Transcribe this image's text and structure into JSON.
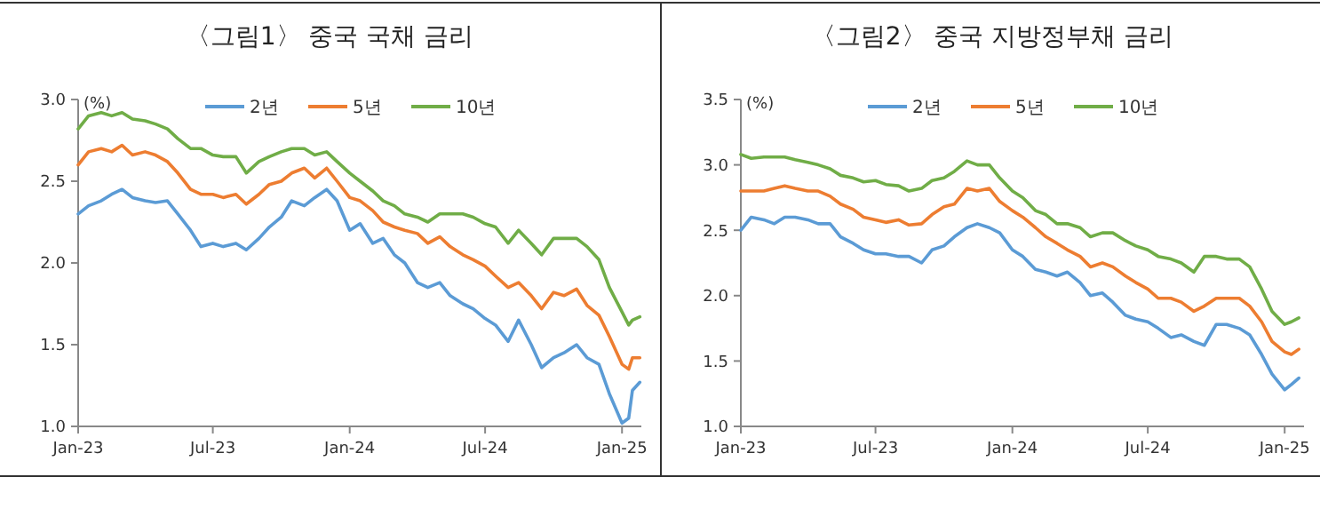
{
  "chart_data": [
    {
      "type": "line",
      "title": "〈그림1〉 중국 국채 금리",
      "ylabel": "(%)",
      "legend": "top",
      "xlim": [
        "2023-01-01",
        "2025-01-27"
      ],
      "ylim": [
        1.0,
        3.0
      ],
      "yticks": [
        {
          "value": 1,
          "label": "1.0"
        },
        1.5,
        {
          "value": 2,
          "label": "2.0"
        },
        2.5,
        {
          "value": 3,
          "label": "3.0"
        }
      ],
      "xticks": [
        {
          "value": "2023-01-01",
          "label": "Jan-23"
        },
        {
          "value": "2023-07-01",
          "label": "Jul-23"
        },
        {
          "value": "2024-01-01",
          "label": "Jan-24"
        },
        {
          "value": "2024-07-01",
          "label": "Jul-24"
        },
        {
          "value": "2025-01-01",
          "label": "Jan-25"
        }
      ],
      "x": [
        "2023-01-01",
        "2023-01-15",
        "2023-02-01",
        "2023-02-15",
        "2023-03-01",
        "2023-03-15",
        "2023-04-01",
        "2023-04-15",
        "2023-05-01",
        "2023-05-15",
        "2023-06-01",
        "2023-06-15",
        "2023-07-01",
        "2023-07-15",
        "2023-08-01",
        "2023-08-15",
        "2023-09-01",
        "2023-09-15",
        "2023-10-01",
        "2023-10-15",
        "2023-11-01",
        "2023-11-15",
        "2023-12-01",
        "2023-12-15",
        "2024-01-01",
        "2024-01-15",
        "2024-02-01",
        "2024-02-15",
        "2024-03-01",
        "2024-03-15",
        "2024-04-01",
        "2024-04-15",
        "2024-05-01",
        "2024-05-15",
        "2024-06-01",
        "2024-06-15",
        "2024-07-01",
        "2024-07-15",
        "2024-08-01",
        "2024-08-15",
        "2024-09-01",
        "2024-09-15",
        "2024-10-01",
        "2024-10-15",
        "2024-11-01",
        "2024-11-15",
        "2024-12-01",
        "2024-12-15",
        "2025-01-01",
        "2025-01-10",
        "2025-01-15",
        "2025-01-25"
      ],
      "series": [
        {
          "name": "2년",
          "color": "#5b9bd5",
          "values": [
            2.3,
            2.35,
            2.38,
            2.42,
            2.45,
            2.4,
            2.38,
            2.37,
            2.38,
            2.3,
            2.2,
            2.1,
            2.12,
            2.1,
            2.12,
            2.08,
            2.15,
            2.22,
            2.28,
            2.38,
            2.35,
            2.4,
            2.45,
            2.38,
            2.2,
            2.24,
            2.12,
            2.15,
            2.05,
            2.0,
            1.88,
            1.85,
            1.88,
            1.8,
            1.75,
            1.72,
            1.66,
            1.62,
            1.52,
            1.65,
            1.5,
            1.36,
            1.42,
            1.45,
            1.5,
            1.42,
            1.38,
            1.2,
            1.02,
            1.05,
            1.22,
            1.27
          ]
        },
        {
          "name": "5년",
          "color": "#ed7d31",
          "values": [
            2.6,
            2.68,
            2.7,
            2.68,
            2.72,
            2.66,
            2.68,
            2.66,
            2.62,
            2.55,
            2.45,
            2.42,
            2.42,
            2.4,
            2.42,
            2.36,
            2.42,
            2.48,
            2.5,
            2.55,
            2.58,
            2.52,
            2.58,
            2.5,
            2.4,
            2.38,
            2.32,
            2.25,
            2.22,
            2.2,
            2.18,
            2.12,
            2.16,
            2.1,
            2.05,
            2.02,
            1.98,
            1.92,
            1.85,
            1.88,
            1.8,
            1.72,
            1.82,
            1.8,
            1.84,
            1.74,
            1.68,
            1.55,
            1.38,
            1.35,
            1.42,
            1.42
          ]
        },
        {
          "name": "10년",
          "color": "#70ad47",
          "values": [
            2.82,
            2.9,
            2.92,
            2.9,
            2.92,
            2.88,
            2.87,
            2.85,
            2.82,
            2.76,
            2.7,
            2.7,
            2.66,
            2.65,
            2.65,
            2.55,
            2.62,
            2.65,
            2.68,
            2.7,
            2.7,
            2.66,
            2.68,
            2.62,
            2.55,
            2.5,
            2.44,
            2.38,
            2.35,
            2.3,
            2.28,
            2.25,
            2.3,
            2.3,
            2.3,
            2.28,
            2.24,
            2.22,
            2.12,
            2.2,
            2.12,
            2.05,
            2.15,
            2.15,
            2.15,
            2.1,
            2.02,
            1.85,
            1.7,
            1.62,
            1.65,
            1.67
          ]
        }
      ]
    },
    {
      "type": "line",
      "title": "〈그림2〉 중국 지방정부채 금리",
      "ylabel": "(%)",
      "legend": "top",
      "xlim": [
        "2023-01-01",
        "2025-01-27"
      ],
      "ylim": [
        1.0,
        3.5
      ],
      "yticks": [
        {
          "value": 1,
          "label": "1.0"
        },
        1.5,
        {
          "value": 2,
          "label": "2.0"
        },
        2.5,
        {
          "value": 3,
          "label": "3.0"
        },
        3.5
      ],
      "xticks": [
        {
          "value": "2023-01-01",
          "label": "Jan-23"
        },
        {
          "value": "2023-07-01",
          "label": "Jul-23"
        },
        {
          "value": "2024-01-01",
          "label": "Jan-24"
        },
        {
          "value": "2024-07-01",
          "label": "Jul-24"
        },
        {
          "value": "2025-01-01",
          "label": "Jan-25"
        }
      ],
      "x": [
        "2023-01-01",
        "2023-01-15",
        "2023-02-01",
        "2023-02-15",
        "2023-03-01",
        "2023-03-15",
        "2023-04-01",
        "2023-04-15",
        "2023-05-01",
        "2023-05-15",
        "2023-06-01",
        "2023-06-15",
        "2023-07-01",
        "2023-07-15",
        "2023-08-01",
        "2023-08-15",
        "2023-09-01",
        "2023-09-15",
        "2023-10-01",
        "2023-10-15",
        "2023-11-01",
        "2023-11-15",
        "2023-12-01",
        "2023-12-15",
        "2024-01-01",
        "2024-01-15",
        "2024-02-01",
        "2024-02-15",
        "2024-03-01",
        "2024-03-15",
        "2024-04-01",
        "2024-04-15",
        "2024-05-01",
        "2024-05-15",
        "2024-06-01",
        "2024-06-15",
        "2024-07-01",
        "2024-07-15",
        "2024-08-01",
        "2024-08-15",
        "2024-09-01",
        "2024-09-15",
        "2024-10-01",
        "2024-10-15",
        "2024-11-01",
        "2024-11-15",
        "2024-12-01",
        "2024-12-15",
        "2025-01-01",
        "2025-01-10",
        "2025-01-20"
      ],
      "series": [
        {
          "name": "2년",
          "color": "#5b9bd5",
          "values": [
            2.5,
            2.6,
            2.58,
            2.55,
            2.6,
            2.6,
            2.58,
            2.55,
            2.55,
            2.45,
            2.4,
            2.35,
            2.32,
            2.32,
            2.3,
            2.3,
            2.25,
            2.35,
            2.38,
            2.45,
            2.52,
            2.55,
            2.52,
            2.48,
            2.35,
            2.3,
            2.2,
            2.18,
            2.15,
            2.18,
            2.1,
            2.0,
            2.02,
            1.95,
            1.85,
            1.82,
            1.8,
            1.75,
            1.68,
            1.7,
            1.65,
            1.62,
            1.78,
            1.78,
            1.75,
            1.7,
            1.55,
            1.4,
            1.28,
            1.32,
            1.37
          ]
        },
        {
          "name": "5년",
          "color": "#ed7d31",
          "values": [
            2.8,
            2.8,
            2.8,
            2.82,
            2.84,
            2.82,
            2.8,
            2.8,
            2.76,
            2.7,
            2.66,
            2.6,
            2.58,
            2.56,
            2.58,
            2.54,
            2.55,
            2.62,
            2.68,
            2.7,
            2.82,
            2.8,
            2.82,
            2.72,
            2.65,
            2.6,
            2.52,
            2.45,
            2.4,
            2.35,
            2.3,
            2.22,
            2.25,
            2.22,
            2.15,
            2.1,
            2.05,
            1.98,
            1.98,
            1.95,
            1.88,
            1.92,
            1.98,
            1.98,
            1.98,
            1.92,
            1.8,
            1.65,
            1.57,
            1.55,
            1.59
          ]
        },
        {
          "name": "10년",
          "color": "#70ad47",
          "values": [
            3.08,
            3.05,
            3.06,
            3.06,
            3.06,
            3.04,
            3.02,
            3.0,
            2.97,
            2.92,
            2.9,
            2.87,
            2.88,
            2.85,
            2.84,
            2.8,
            2.82,
            2.88,
            2.9,
            2.95,
            3.03,
            3.0,
            3.0,
            2.9,
            2.8,
            2.75,
            2.65,
            2.62,
            2.55,
            2.55,
            2.52,
            2.45,
            2.48,
            2.48,
            2.42,
            2.38,
            2.35,
            2.3,
            2.28,
            2.25,
            2.18,
            2.3,
            2.3,
            2.28,
            2.28,
            2.22,
            2.05,
            1.88,
            1.78,
            1.8,
            1.83
          ]
        }
      ]
    }
  ]
}
